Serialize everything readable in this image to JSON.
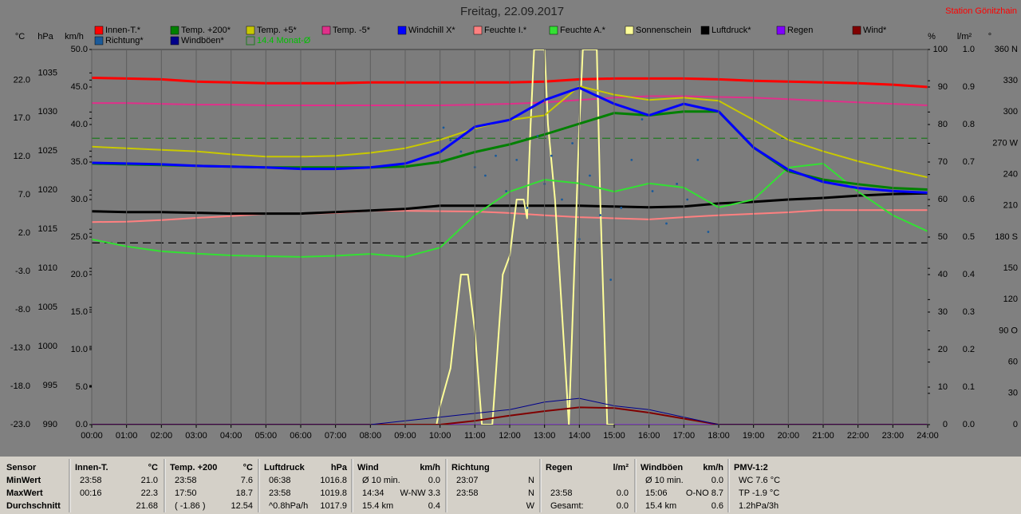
{
  "chart_data": {
    "type": "line",
    "title": "Freitag, 22.09.2017",
    "station": "Station Gönitzhain",
    "x": [
      0,
      1,
      2,
      3,
      4,
      5,
      6,
      7,
      8,
      9,
      10,
      11,
      12,
      13,
      14,
      15,
      16,
      17,
      18,
      19,
      20,
      21,
      22,
      23,
      24
    ],
    "xlim": [
      0,
      24
    ],
    "xticks": [
      {
        "value": 0,
        "label": "00:00"
      },
      {
        "value": 1,
        "label": "01:00"
      },
      {
        "value": 2,
        "label": "02:00"
      },
      {
        "value": 3,
        "label": "03:00"
      },
      {
        "value": 4,
        "label": "04:00"
      },
      {
        "value": 5,
        "label": "05:00"
      },
      {
        "value": 6,
        "label": "06:00"
      },
      {
        "value": 7,
        "label": "07:00"
      },
      {
        "value": 8,
        "label": "08:00"
      },
      {
        "value": 9,
        "label": "09:00"
      },
      {
        "value": 10,
        "label": "10:00"
      },
      {
        "value": 11,
        "label": "11:00"
      },
      {
        "value": 12,
        "label": "12:00"
      },
      {
        "value": 13,
        "label": "13:00"
      },
      {
        "value": 14,
        "label": "14:00"
      },
      {
        "value": 15,
        "label": "15:00"
      },
      {
        "value": 16,
        "label": "16:00"
      },
      {
        "value": 17,
        "label": "17:00"
      },
      {
        "value": 18,
        "label": "18:00"
      },
      {
        "value": 19,
        "label": "19:00"
      },
      {
        "value": 20,
        "label": "20:00"
      },
      {
        "value": 21,
        "label": "21:00"
      },
      {
        "value": 22,
        "label": "22:00"
      },
      {
        "value": 23,
        "label": "23:00"
      },
      {
        "value": 24,
        "label": "24:00"
      }
    ],
    "grid": true,
    "axes": {
      "celsius": {
        "unit": "°C",
        "lim": [
          -23,
          26
        ],
        "ticks": [
          {
            "value": -23,
            "label": "-23.0"
          },
          {
            "value": -18,
            "label": "-18.0"
          },
          {
            "value": -13,
            "label": "-13.0"
          },
          {
            "value": -8,
            "label": "-8.0"
          },
          {
            "value": -3,
            "label": "-3.0"
          },
          {
            "value": 2,
            "label": "2.0"
          },
          {
            "value": 7,
            "label": "7.0"
          },
          {
            "value": 12,
            "label": "12.0"
          },
          {
            "value": 17,
            "label": "17.0"
          },
          {
            "value": 22,
            "label": "22.0"
          }
        ]
      },
      "hpa": {
        "unit": "hPa",
        "lim": [
          990,
          1038
        ],
        "ticks": [
          990,
          995,
          1000,
          1005,
          1010,
          1015,
          1020,
          1025,
          1030,
          1035
        ]
      },
      "kmh": {
        "unit": "km/h",
        "lim": [
          0,
          50
        ],
        "ticks": [
          {
            "value": 0,
            "label": "0.0"
          },
          {
            "value": 5,
            "label": "5.0"
          },
          {
            "value": 10,
            "label": "10.0"
          },
          {
            "value": 15,
            "label": "15.0"
          },
          {
            "value": 20,
            "label": "20.0"
          },
          {
            "value": 25,
            "label": "25.0"
          },
          {
            "value": 30,
            "label": "30.0"
          },
          {
            "value": 35,
            "label": "35.0"
          },
          {
            "value": 40,
            "label": "40.0"
          },
          {
            "value": 45,
            "label": "45.0"
          },
          {
            "value": 50,
            "label": "50.0"
          }
        ]
      },
      "percent": {
        "unit": "%",
        "lim": [
          0,
          100
        ],
        "ticks": [
          0,
          10,
          20,
          30,
          40,
          50,
          60,
          70,
          80,
          90,
          100
        ]
      },
      "rain": {
        "unit": "l/m²",
        "lim": [
          0,
          1
        ],
        "ticks": [
          {
            "value": 0,
            "label": "0.0"
          },
          {
            "value": 0.1,
            "label": "0.1"
          },
          {
            "value": 0.2,
            "label": "0.2"
          },
          {
            "value": 0.3,
            "label": "0.3"
          },
          {
            "value": 0.4,
            "label": "0.4"
          },
          {
            "value": 0.5,
            "label": "0.5"
          },
          {
            "value": 0.6,
            "label": "0.6"
          },
          {
            "value": 0.7,
            "label": "0.7"
          },
          {
            "value": 0.8,
            "label": "0.8"
          },
          {
            "value": 0.9,
            "label": "0.9"
          },
          {
            "value": 1,
            "label": "1.0"
          }
        ]
      },
      "degree": {
        "unit": "°",
        "lim": [
          0,
          360
        ],
        "ticks": [
          0,
          30,
          60,
          {
            "value": 90,
            "label": "90 O"
          },
          120,
          150,
          {
            "value": 180,
            "label": "180 S"
          },
          210,
          240,
          {
            "value": 270,
            "label": "270 W"
          },
          300,
          330,
          {
            "value": 360,
            "label": "360 N"
          }
        ]
      }
    },
    "series": [
      {
        "name": "Innen-T.*",
        "color": "#ff0000",
        "axis": "celsius",
        "width": 3,
        "values": [
          22.3,
          22.2,
          22.1,
          21.8,
          21.7,
          21.6,
          21.6,
          21.6,
          21.7,
          21.7,
          21.7,
          21.7,
          21.7,
          21.8,
          22.1,
          22.2,
          22.2,
          22.2,
          22.1,
          21.9,
          21.8,
          21.7,
          21.6,
          21.4,
          21.1
        ]
      },
      {
        "name": "Temp. +200*",
        "color": "#008000",
        "axis": "celsius",
        "width": 3,
        "values": [
          11.1,
          11.0,
          10.9,
          10.8,
          10.7,
          10.6,
          10.6,
          10.6,
          10.6,
          10.7,
          11.3,
          12.6,
          13.6,
          14.9,
          16.3,
          17.7,
          17.4,
          17.9,
          17.9,
          13.2,
          10.1,
          9.0,
          8.4,
          7.9,
          7.7
        ]
      },
      {
        "name": "Temp. +5*",
        "color": "#c8c800",
        "axis": "celsius",
        "width": 2,
        "values": [
          13.3,
          13.1,
          12.9,
          12.7,
          12.3,
          12.0,
          12.0,
          12.1,
          12.5,
          13.1,
          14.2,
          15.7,
          16.8,
          17.4,
          21.2,
          20.1,
          19.4,
          19.7,
          19.3,
          16.8,
          14.2,
          12.7,
          11.4,
          10.3,
          9.3
        ]
      },
      {
        "name": "Temp. -5*",
        "color": "#e0308a",
        "axis": "celsius",
        "width": 2,
        "values": [
          19.0,
          19.0,
          18.9,
          18.8,
          18.8,
          18.7,
          18.7,
          18.7,
          18.7,
          18.7,
          18.7,
          18.8,
          18.9,
          19.1,
          19.4,
          19.7,
          19.9,
          19.9,
          19.8,
          19.7,
          19.5,
          19.3,
          19.1,
          18.9,
          18.7
        ]
      },
      {
        "name": "Windchill X*",
        "color": "#0000ff",
        "axis": "celsius",
        "width": 3,
        "values": [
          11.2,
          11.1,
          11.0,
          10.8,
          10.7,
          10.6,
          10.4,
          10.4,
          10.6,
          11.1,
          12.6,
          15.9,
          16.8,
          19.4,
          21.0,
          18.9,
          17.4,
          18.9,
          17.9,
          13.2,
          10.3,
          8.7,
          7.9,
          7.5,
          7.3
        ]
      },
      {
        "name": "Feuchte I.*",
        "color": "#ff8080",
        "axis": "percent",
        "width": 2,
        "values": [
          54.0,
          54.1,
          54.5,
          55.1,
          55.6,
          56.2,
          56.2,
          56.4,
          57.0,
          57.0,
          56.9,
          56.8,
          56.4,
          55.8,
          55.3,
          55.0,
          54.7,
          55.3,
          55.8,
          56.2,
          56.6,
          57.2,
          57.2,
          57.2,
          57.2
        ]
      },
      {
        "name": "Feuchte A.*",
        "color": "#33e033",
        "axis": "percent",
        "width": 2,
        "values": [
          49.4,
          47.5,
          46.2,
          45.6,
          45.1,
          44.9,
          44.7,
          45.0,
          45.5,
          44.7,
          47.2,
          55.8,
          62.1,
          65.3,
          64.3,
          62.1,
          64.3,
          63.2,
          57.9,
          60.0,
          68.5,
          69.6,
          62.1,
          55.8,
          51.5
        ]
      },
      {
        "name": "Sonnenschein",
        "color": "#ffff99",
        "axis": "percent",
        "width": 2,
        "x": [
          9.9,
          10.0,
          10.3,
          10.6,
          10.8,
          11.0,
          11.2,
          11.5,
          11.8,
          12.0,
          12.2,
          12.4,
          12.5,
          12.6,
          12.7,
          13.0,
          13.1,
          13.3,
          13.5,
          13.7,
          14.0,
          14.1,
          14.5,
          14.6,
          14.8,
          15.0
        ],
        "values": [
          0,
          5,
          15,
          40,
          40,
          25,
          0,
          0,
          40,
          45,
          60,
          60,
          55,
          80,
          100,
          100,
          80,
          60,
          30,
          0,
          80,
          100,
          100,
          60,
          0,
          0
        ]
      },
      {
        "name": "Luftdruck*",
        "color": "#000000",
        "axis": "hpa",
        "width": 3,
        "values": [
          1017.3,
          1017.2,
          1017.2,
          1017.1,
          1017.0,
          1017.0,
          1017.0,
          1017.2,
          1017.4,
          1017.6,
          1018.0,
          1018.0,
          1018.0,
          1018.0,
          1018.0,
          1017.9,
          1017.8,
          1017.9,
          1018.3,
          1018.5,
          1018.8,
          1019.0,
          1019.3,
          1019.5,
          1019.6
        ]
      },
      {
        "name": "Regen",
        "color": "#8000ff",
        "axis": "rain",
        "width": 1,
        "values": [
          0,
          0,
          0,
          0,
          0,
          0,
          0,
          0,
          0,
          0,
          0,
          0,
          0,
          0,
          0,
          0,
          0,
          0,
          0,
          0,
          0,
          0,
          0,
          0,
          0
        ]
      },
      {
        "name": "Wind*",
        "color": "#800000",
        "axis": "kmh",
        "width": 2,
        "values": [
          0,
          0,
          0,
          0,
          0,
          0,
          0,
          0,
          0,
          0,
          0,
          0.5,
          1.2,
          1.8,
          2.3,
          2.2,
          1.6,
          0.8,
          0,
          0,
          0,
          0,
          0,
          0,
          0
        ]
      },
      {
        "name": "Richtung*",
        "color": "#1a5a9a",
        "axis": "degree",
        "type": "scatter",
        "x": [
          10.1,
          10.3,
          10.6,
          11.0,
          11.3,
          11.6,
          11.9,
          12.2,
          12.5,
          12.8,
          13.0,
          13.2,
          13.5,
          13.8,
          14.0,
          14.3,
          14.6,
          14.9,
          15.2,
          15.5,
          15.8,
          16.1,
          16.5,
          16.8,
          17.1,
          17.4,
          17.7
        ],
        "values": [
          285,
          273,
          262,
          247,
          239,
          258,
          224,
          254,
          208,
          277,
          231,
          258,
          216,
          270,
          178,
          239,
          201,
          139,
          208,
          254,
          293,
          224,
          193,
          231,
          216,
          254,
          185
        ]
      },
      {
        "name": "Windböen*",
        "color": "#00008b",
        "axis": "kmh",
        "width": 1,
        "values": [
          0,
          0,
          0,
          0,
          0,
          0,
          0,
          0,
          0,
          0.5,
          1.0,
          1.5,
          2.0,
          3.0,
          3.5,
          2.5,
          2.0,
          1.0,
          0,
          0,
          0,
          0,
          0,
          0,
          0
        ]
      }
    ],
    "reference_lines": [
      {
        "name": "14.4 Monat-Ø",
        "value": 14.4,
        "axis": "celsius",
        "color": "#1f7a1f"
      },
      {
        "value": 1013.25,
        "axis": "hpa",
        "color": "#000000"
      }
    ]
  },
  "stats_table": {
    "row_labels": [
      "Sensor",
      "MinWert",
      "MaxWert",
      "Durchschnitt"
    ],
    "columns": [
      {
        "header": "Innen-T.",
        "unit": "°C",
        "cells": [
          {
            "left": "23:58",
            "right": "21.0"
          },
          {
            "left": "00:16",
            "right": "22.3"
          },
          {
            "right": "21.68"
          }
        ]
      },
      {
        "header": "Temp. +200",
        "unit": "°C",
        "cells": [
          {
            "left": "23:58",
            "right": "7.6"
          },
          {
            "left": "17:50",
            "right": "18.7"
          },
          {
            "left": "( -1.86 )",
            "right": "12.54"
          }
        ]
      },
      {
        "header": "Luftdruck",
        "unit": "hPa",
        "cells": [
          {
            "left": "06:38",
            "right": "1016.8"
          },
          {
            "left": "23:58",
            "right": "1019.8"
          },
          {
            "left": "^0.8hPa/h",
            "right": "1017.9"
          }
        ]
      },
      {
        "header": "Wind",
        "unit": "km/h",
        "cells": [
          {
            "left": "Ø 10 min.",
            "right": "0.0"
          },
          {
            "left": "14:34",
            "right": "W-NW 3.3"
          },
          {
            "left": "15.4 km",
            "right": "0.4"
          }
        ]
      },
      {
        "header": "Richtung",
        "cells": [
          {
            "left": "23:07",
            "right": "N"
          },
          {
            "left": "23:58",
            "right": "N"
          },
          {
            "right": "W"
          }
        ]
      },
      {
        "header": "Regen",
        "unit": "l/m²",
        "cells": [
          {},
          {
            "left": "23:58",
            "right": "0.0"
          },
          {
            "left": "Gesamt:",
            "right": "0.0"
          }
        ]
      },
      {
        "header": "Windböen",
        "unit": "km/h",
        "cells": [
          {
            "left": "Ø 10 min.",
            "right": "0.0"
          },
          {
            "left": "15:06",
            "right": "O-NO 8.7"
          },
          {
            "left": "15.4 km",
            "right": "0.6"
          }
        ]
      },
      {
        "header": "PMV-1:2",
        "cells": [
          {
            "left": "WC 7.6 °C"
          },
          {
            "left": "TP -1.9 °C"
          },
          {
            "left": "1.2hPa/3h"
          }
        ]
      }
    ]
  }
}
